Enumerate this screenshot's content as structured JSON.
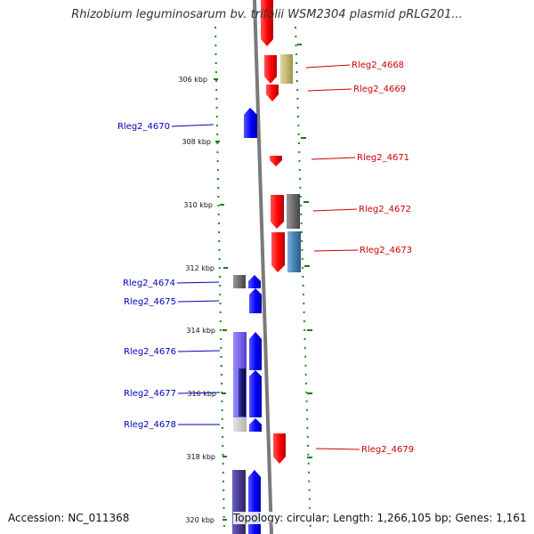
{
  "title": "Rhizobium leguminosarum bv. trifolii WSM2304 plasmid pRLG201...",
  "accession": "Accession: NC_011368",
  "summary": "Topology: circular; Length: 1,266,105 bp; Genes: 1,161",
  "colors": {
    "forward_label": "#cc0000",
    "reverse_label": "#0000bb",
    "tick": "#1a7a1a",
    "backbone": "#888888"
  },
  "scale_ticks": [
    "306 kbp",
    "308 kbp",
    "310 kbp",
    "312 kbp",
    "314 kbp",
    "316 kbp",
    "318 kbp",
    "320 kbp"
  ],
  "genes": [
    {
      "name": "Rleg2_4668",
      "strand": "forward"
    },
    {
      "name": "Rleg2_4669",
      "strand": "forward"
    },
    {
      "name": "Rleg2_4670",
      "strand": "reverse"
    },
    {
      "name": "Rleg2_4671",
      "strand": "forward"
    },
    {
      "name": "Rleg2_4672",
      "strand": "forward"
    },
    {
      "name": "Rleg2_4673",
      "strand": "forward"
    },
    {
      "name": "Rleg2_4674",
      "strand": "reverse"
    },
    {
      "name": "Rleg2_4675",
      "strand": "reverse"
    },
    {
      "name": "Rleg2_4676",
      "strand": "reverse"
    },
    {
      "name": "Rleg2_4677",
      "strand": "reverse"
    },
    {
      "name": "Rleg2_4678",
      "strand": "reverse"
    },
    {
      "name": "Rleg2_4679",
      "strand": "forward"
    }
  ]
}
